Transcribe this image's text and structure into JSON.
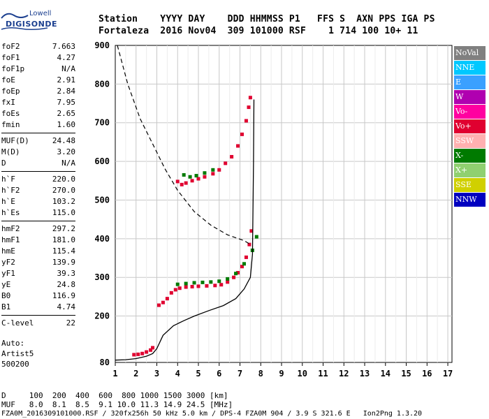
{
  "logo": {
    "maker": "Lowell",
    "brand": "DIGISONDE"
  },
  "header": {
    "line1": "Station    YYYY DAY    DDD HHMMSS P1   FFS S  AXN PPS IGA PS",
    "line2": "Fortaleza  2016 Nov04  309 101000 RSF    1 714 100 10+ 11"
  },
  "params": {
    "group1": [
      {
        "k": "foF2",
        "v": "7.663"
      },
      {
        "k": "foF1",
        "v": "4.27"
      },
      {
        "k": "foF1p",
        "v": "N/A"
      },
      {
        "k": "foE",
        "v": "2.91"
      },
      {
        "k": "foEp",
        "v": "2.84"
      },
      {
        "k": "fxI",
        "v": "7.95"
      },
      {
        "k": "foEs",
        "v": "2.65"
      },
      {
        "k": "fmin",
        "v": "1.60"
      }
    ],
    "group2": [
      {
        "k": "MUF(D)",
        "v": "24.48"
      },
      {
        "k": "M(D)",
        "v": "3.20"
      },
      {
        "k": "D",
        "v": "N/A"
      }
    ],
    "group3": [
      {
        "k": "h`F",
        "v": "220.0"
      },
      {
        "k": "h`F2",
        "v": "270.0"
      },
      {
        "k": "h`E",
        "v": "103.2"
      },
      {
        "k": "h`Es",
        "v": "115.0"
      }
    ],
    "group4": [
      {
        "k": "hmF2",
        "v": "297.2"
      },
      {
        "k": "hmF1",
        "v": "181.0"
      },
      {
        "k": "hmE",
        "v": "115.4"
      },
      {
        "k": "yF2",
        "v": "139.9"
      },
      {
        "k": "yF1",
        "v": "39.3"
      },
      {
        "k": "yE",
        "v": "24.8"
      },
      {
        "k": "B0",
        "v": "116.9"
      },
      {
        "k": "B1",
        "v": "4.74"
      }
    ],
    "group5": [
      {
        "k": "C-level",
        "v": "22"
      }
    ]
  },
  "auto": {
    "line1": "Auto:",
    "line2": "Artist5",
    "line3": "500200"
  },
  "bottom": {
    "d_row": "D     100  200  400  600  800 1000 1500 3000 [km]",
    "muf_row": "MUF   8.0  8.1  8.5  9.1 10.0 11.3 14.9 24.5 [MHz]",
    "footer": "FZA0M_2016309101000.RSF / 320fx256h 50 kHz 5.0 km / DPS-4 FZA0M 904 / 3.9 S 321.6 E   Ion2Png 1.3.20"
  },
  "legend": [
    {
      "label": "NoVal",
      "color": "#808080"
    },
    {
      "label": "NNE",
      "color": "#00c8ff"
    },
    {
      "label": "E",
      "color": "#3aa0ff"
    },
    {
      "label": "W",
      "color": "#b000b0"
    },
    {
      "label": "Vo-",
      "color": "#ff00a0"
    },
    {
      "label": "Vo+",
      "color": "#e00030"
    },
    {
      "label": "SSW",
      "color": "#ffb0b0"
    },
    {
      "label": "X-",
      "color": "#007a00"
    },
    {
      "label": "X+",
      "color": "#90d070"
    },
    {
      "label": "SSE",
      "color": "#d0d000"
    },
    {
      "label": "NNW",
      "color": "#0000c0"
    }
  ],
  "chart_data": {
    "type": "scatter",
    "title": "",
    "xlabel": "",
    "ylabel": "",
    "xlim": [
      1,
      17.2
    ],
    "ylim": [
      80,
      900
    ],
    "x_ticks": [
      "1",
      "2",
      "3",
      "4",
      "5",
      "6",
      "7",
      "8",
      "9",
      "10",
      "11",
      "12",
      "13",
      "14",
      "15",
      "16",
      "17"
    ],
    "y_ticks": [
      "80",
      "200",
      "300",
      "400",
      "500",
      "600",
      "700",
      "800",
      "900"
    ],
    "grid": true,
    "series": [
      {
        "name": "O-trace",
        "color": "#e00030",
        "points": [
          [
            1.9,
            100
          ],
          [
            2.1,
            101
          ],
          [
            2.3,
            103
          ],
          [
            2.5,
            107
          ],
          [
            2.7,
            112
          ],
          [
            2.8,
            118
          ],
          [
            3.1,
            228
          ],
          [
            3.3,
            235
          ],
          [
            3.5,
            245
          ],
          [
            3.7,
            260
          ],
          [
            3.9,
            268
          ],
          [
            4.1,
            272
          ],
          [
            4.4,
            275
          ],
          [
            4.7,
            276
          ],
          [
            5.0,
            277
          ],
          [
            5.4,
            278
          ],
          [
            5.8,
            279
          ],
          [
            6.1,
            281
          ],
          [
            6.4,
            288
          ],
          [
            6.7,
            300
          ],
          [
            6.9,
            312
          ],
          [
            7.1,
            328
          ],
          [
            7.3,
            352
          ],
          [
            7.45,
            385
          ],
          [
            7.55,
            420
          ],
          [
            4.0,
            548
          ],
          [
            4.2,
            540
          ],
          [
            4.4,
            544
          ],
          [
            4.7,
            550
          ],
          [
            5.0,
            555
          ],
          [
            5.3,
            560
          ],
          [
            5.7,
            568
          ],
          [
            6.0,
            578
          ],
          [
            6.3,
            595
          ],
          [
            6.6,
            612
          ],
          [
            6.9,
            640
          ],
          [
            7.1,
            670
          ],
          [
            7.3,
            705
          ],
          [
            7.42,
            740
          ],
          [
            7.5,
            765
          ]
        ]
      },
      {
        "name": "X-trace",
        "color": "#007a00",
        "points": [
          [
            4.0,
            282
          ],
          [
            4.4,
            284
          ],
          [
            4.8,
            286
          ],
          [
            5.2,
            287
          ],
          [
            5.6,
            288
          ],
          [
            6.0,
            290
          ],
          [
            6.4,
            296
          ],
          [
            6.8,
            310
          ],
          [
            7.2,
            335
          ],
          [
            7.6,
            370
          ],
          [
            7.8,
            405
          ],
          [
            4.3,
            565
          ],
          [
            4.6,
            560
          ],
          [
            4.9,
            563
          ],
          [
            5.3,
            570
          ],
          [
            5.7,
            578
          ]
        ]
      },
      {
        "name": "profile",
        "color": "#000000",
        "points": [
          [
            1.0,
            86
          ],
          [
            1.5,
            87
          ],
          [
            2.0,
            90
          ],
          [
            2.5,
            96
          ],
          [
            2.8,
            103
          ],
          [
            3.0,
            116
          ],
          [
            3.3,
            150
          ],
          [
            3.8,
            175
          ],
          [
            4.3,
            188
          ],
          [
            4.8,
            200
          ],
          [
            5.5,
            214
          ],
          [
            6.2,
            227
          ],
          [
            6.8,
            245
          ],
          [
            7.2,
            270
          ],
          [
            7.5,
            300
          ],
          [
            7.6,
            360
          ],
          [
            7.63,
            500
          ],
          [
            7.65,
            600
          ],
          [
            7.67,
            760
          ]
        ]
      },
      {
        "name": "MUF(D) curve",
        "color": "#000000",
        "points": [
          [
            1.1,
            900
          ],
          [
            1.6,
            800
          ],
          [
            2.2,
            710
          ],
          [
            2.8,
            645
          ],
          [
            3.4,
            580
          ],
          [
            4.0,
            525
          ],
          [
            4.8,
            470
          ],
          [
            5.6,
            435
          ],
          [
            6.4,
            410
          ],
          [
            7.2,
            395
          ],
          [
            7.5,
            385
          ]
        ]
      }
    ]
  }
}
